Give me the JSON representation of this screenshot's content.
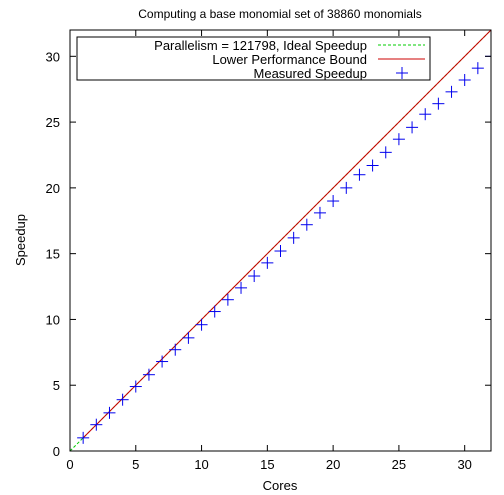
{
  "chart_data": {
    "type": "line",
    "title": "Computing a base monomial set of 38860 monomials",
    "xlabel": "Cores",
    "ylabel": "Speedup",
    "xlim": [
      0,
      32
    ],
    "ylim": [
      0,
      32
    ],
    "x_ticks": [
      0,
      5,
      10,
      15,
      20,
      25,
      30
    ],
    "y_ticks": [
      0,
      5,
      10,
      15,
      20,
      25,
      30
    ],
    "grid": false,
    "legend_position": "top-left",
    "series": [
      {
        "name": "Parallelism = 121798, Ideal Speedup",
        "kind": "line",
        "style": "dashed",
        "color": "#00cc00",
        "x": [
          0,
          32
        ],
        "y": [
          0,
          32
        ]
      },
      {
        "name": "Lower Performance Bound",
        "kind": "line",
        "style": "solid",
        "color": "#cc0000",
        "x": [
          1,
          32
        ],
        "y": [
          1,
          32
        ]
      },
      {
        "name": "Measured Speedup",
        "kind": "points",
        "marker": "plus",
        "color": "#0000ee",
        "x": [
          1,
          2,
          3,
          4,
          5,
          6,
          7,
          8,
          9,
          10,
          11,
          12,
          13,
          14,
          15,
          16,
          17,
          18,
          19,
          20,
          21,
          22,
          23,
          24,
          25,
          26,
          27,
          28,
          29,
          30,
          31,
          32
        ],
        "y": [
          1.0,
          2.0,
          2.9,
          3.9,
          4.9,
          5.8,
          6.8,
          7.7,
          8.6,
          9.6,
          10.6,
          11.5,
          12.4,
          13.3,
          14.3,
          15.2,
          16.2,
          17.2,
          18.1,
          19.0,
          20.0,
          21.0,
          21.7,
          22.7,
          23.7,
          24.6,
          25.6,
          26.4,
          27.3,
          28.2,
          29.1,
          30.0
        ]
      }
    ]
  }
}
